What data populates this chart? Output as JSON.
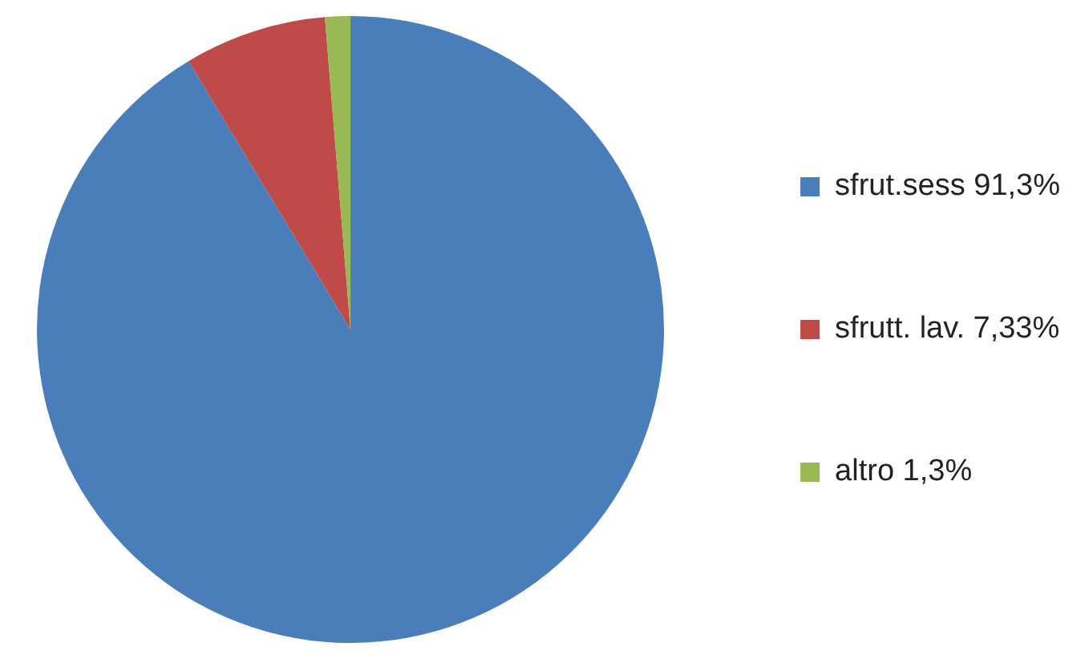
{
  "chart_data": {
    "type": "pie",
    "categories": [
      "sfrut.sess 91,3%",
      "sfrutt. lav. 7,33%",
      "altro 1,3%"
    ],
    "values": [
      91.3,
      7.33,
      1.3
    ],
    "colors": [
      "#4a7ebb",
      "#be4b48",
      "#98b954"
    ],
    "legend": "right"
  }
}
